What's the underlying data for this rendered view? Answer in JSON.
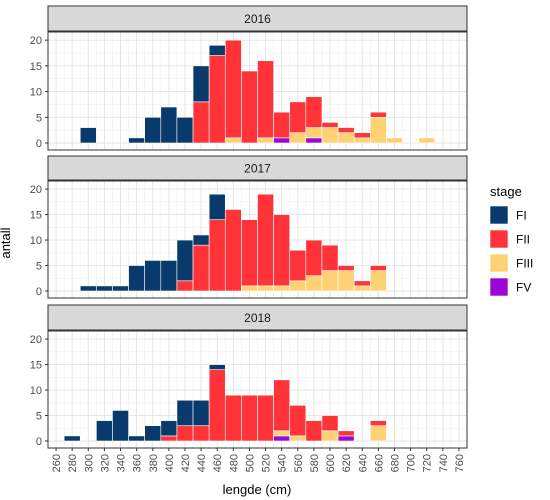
{
  "chart_data": {
    "type": "bar",
    "stacked": true,
    "faceted_by": "year",
    "xlabel": "lengde (cm)",
    "ylabel": "antall",
    "x_ticks": [
      260,
      280,
      300,
      320,
      340,
      360,
      380,
      400,
      420,
      440,
      460,
      480,
      500,
      520,
      540,
      560,
      580,
      600,
      620,
      640,
      660,
      680,
      700,
      720,
      740,
      760
    ],
    "y_ticks": [
      0,
      5,
      10,
      15,
      20
    ],
    "ylim": [
      0,
      21
    ],
    "xlim": [
      250,
      770
    ],
    "bin_width": 20,
    "grid": true,
    "legend": {
      "title": "stage",
      "position": "right",
      "items": [
        {
          "name": "FI",
          "color": "#083b6b"
        },
        {
          "name": "FII",
          "color": "#ff3338"
        },
        {
          "name": "FIII",
          "color": "#fdd174"
        },
        {
          "name": "FV",
          "color": "#9b07d3"
        }
      ]
    },
    "stack_order": [
      "FV",
      "FIII",
      "FII",
      "FI"
    ],
    "facets": [
      {
        "label": "2016",
        "x": [
          300,
          360,
          380,
          400,
          420,
          440,
          460,
          480,
          500,
          520,
          540,
          560,
          580,
          600,
          620,
          640,
          660,
          680,
          720
        ],
        "series": [
          {
            "name": "FI",
            "values": [
              3,
              1,
              5,
              7,
              5,
              7,
              2,
              0,
              0,
              0,
              0,
              0,
              0,
              0,
              0,
              0,
              0,
              0,
              0
            ]
          },
          {
            "name": "FII",
            "values": [
              0,
              0,
              0,
              0,
              0,
              8,
              17,
              19,
              14,
              15,
              5,
              6,
              6,
              1,
              1,
              1,
              1,
              0,
              0
            ]
          },
          {
            "name": "FIII",
            "values": [
              0,
              0,
              0,
              0,
              0,
              0,
              0,
              1,
              0,
              1,
              0,
              2,
              2,
              3,
              2,
              1,
              5,
              1,
              1
            ]
          },
          {
            "name": "FV",
            "values": [
              0,
              0,
              0,
              0,
              0,
              0,
              0,
              0,
              0,
              0,
              1,
              0,
              1,
              0,
              0,
              0,
              0,
              0,
              0
            ]
          }
        ]
      },
      {
        "label": "2017",
        "x": [
          300,
          320,
          340,
          360,
          380,
          400,
          420,
          440,
          460,
          480,
          500,
          520,
          540,
          560,
          580,
          600,
          620,
          640,
          660
        ],
        "series": [
          {
            "name": "FI",
            "values": [
              1,
              1,
              1,
              5,
              6,
              6,
              8,
              2,
              5,
              0,
              0,
              0,
              0,
              0,
              0,
              0,
              0,
              0,
              0
            ]
          },
          {
            "name": "FII",
            "values": [
              0,
              0,
              0,
              0,
              0,
              0,
              2,
              9,
              14,
              16,
              13,
              18,
              14,
              6,
              7,
              5,
              1,
              1,
              1
            ]
          },
          {
            "name": "FIII",
            "values": [
              0,
              0,
              0,
              0,
              0,
              0,
              0,
              0,
              0,
              0,
              1,
              1,
              1,
              2,
              3,
              4,
              4,
              1,
              4
            ]
          },
          {
            "name": "FV",
            "values": [
              0,
              0,
              0,
              0,
              0,
              0,
              0,
              0,
              0,
              0,
              0,
              0,
              0,
              0,
              0,
              0,
              0,
              0,
              0
            ]
          }
        ]
      },
      {
        "label": "2018",
        "x": [
          280,
          320,
          340,
          360,
          380,
          400,
          420,
          440,
          460,
          480,
          500,
          520,
          540,
          560,
          580,
          600,
          620,
          660
        ],
        "series": [
          {
            "name": "FI",
            "values": [
              1,
              4,
              6,
              1,
              3,
              3,
              5,
              5,
              1,
              0,
              0,
              0,
              0,
              0,
              0,
              0,
              0,
              0
            ]
          },
          {
            "name": "FII",
            "values": [
              0,
              0,
              0,
              0,
              0,
              1,
              3,
              3,
              14,
              9,
              9,
              9,
              10,
              6,
              4,
              3,
              1,
              1
            ]
          },
          {
            "name": "FIII",
            "values": [
              0,
              0,
              0,
              0,
              0,
              0,
              0,
              0,
              0,
              0,
              0,
              0,
              1,
              1,
              0,
              2,
              0,
              3
            ]
          },
          {
            "name": "FV",
            "values": [
              0,
              0,
              0,
              0,
              0,
              0,
              0,
              0,
              0,
              0,
              0,
              0,
              1,
              0,
              0,
              0,
              1,
              0
            ]
          }
        ]
      }
    ]
  }
}
